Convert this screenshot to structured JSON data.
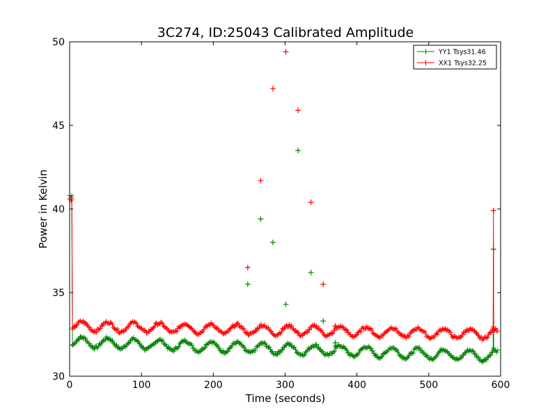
{
  "chart_data": {
    "type": "line",
    "title": "3C274, ID:25043 Calibrated Amplitude",
    "xlabel": "Time (seconds)",
    "ylabel": "Power in Kelvin",
    "xlim": [
      0,
      600
    ],
    "ylim": [
      30,
      50
    ],
    "xticks": [
      0,
      100,
      200,
      300,
      400,
      500,
      600
    ],
    "yticks": [
      30,
      35,
      40,
      45,
      50
    ],
    "grid": false,
    "legend_position": "top-right",
    "series": [
      {
        "name": "YY1 Tsys31.46",
        "color": "#008000",
        "baseline": {
          "start": 32.05,
          "end": 31.2
        },
        "oscillation": {
          "amplitude": 0.3,
          "period_seconds": 36
        },
        "start_value": 40.8,
        "spikes": [
          {
            "x": 248,
            "y": 35.5
          },
          {
            "x": 266,
            "y": 39.4
          },
          {
            "x": 283,
            "y": 38.0
          },
          {
            "x": 301,
            "y": 34.3
          },
          {
            "x": 318,
            "y": 43.5
          },
          {
            "x": 336,
            "y": 36.2
          },
          {
            "x": 353,
            "y": 33.3
          },
          {
            "x": 370,
            "y": 32.0
          },
          {
            "x": 590,
            "y": 37.6
          }
        ]
      },
      {
        "name": "XX1 Tsys32.25",
        "color": "#ff0000",
        "baseline": {
          "start": 33.0,
          "end": 32.5
        },
        "oscillation": {
          "amplitude": 0.28,
          "period_seconds": 36
        },
        "start_value": 40.6,
        "spikes": [
          {
            "x": 248,
            "y": 36.5
          },
          {
            "x": 266,
            "y": 41.7
          },
          {
            "x": 283,
            "y": 47.2
          },
          {
            "x": 301,
            "y": 49.4
          },
          {
            "x": 318,
            "y": 45.9
          },
          {
            "x": 336,
            "y": 40.4
          },
          {
            "x": 353,
            "y": 35.5
          },
          {
            "x": 370,
            "y": 33.0
          },
          {
            "x": 590,
            "y": 39.9
          }
        ]
      }
    ]
  }
}
